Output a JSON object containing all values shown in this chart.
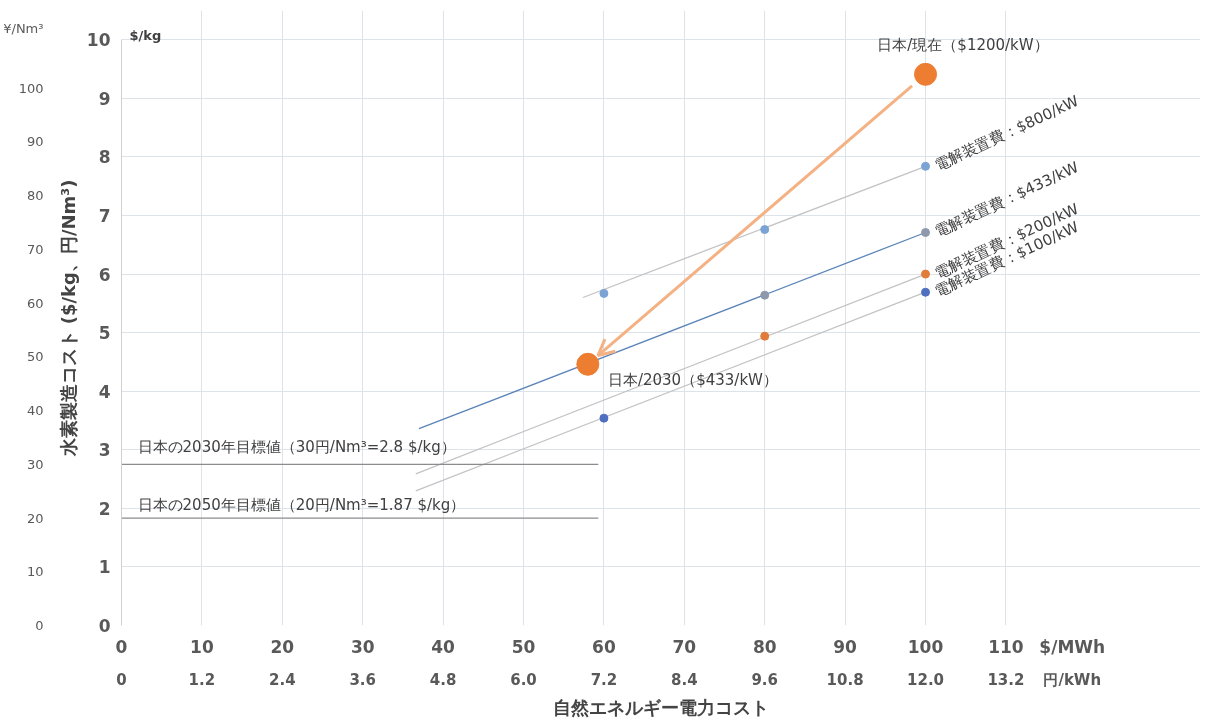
{
  "chart_data": {
    "type": "scatter",
    "xlabel": "自然エネルギー電力コスト",
    "ylabel": "水素製造コスト ($/kg、円/Nm³)",
    "xlim": [
      0,
      110
    ],
    "xticks": [
      0,
      10,
      20,
      30,
      40,
      50,
      60,
      70,
      80,
      90,
      100,
      110
    ],
    "ylim": [
      0,
      10
    ],
    "yticks": [
      0,
      1,
      2,
      3,
      4,
      5,
      6,
      7,
      8,
      9,
      10
    ],
    "x2lim": [
      0,
      13.2
    ],
    "x2ticks": [
      0,
      1.2,
      2.4,
      3.6,
      4.8,
      {
        "value": 6,
        "label": "6.0"
      },
      7.2,
      8.4,
      9.6,
      10.8,
      {
        "value": 12,
        "label": "12.0"
      },
      13.2
    ],
    "y2lim": [
      0,
      109
    ],
    "y2ticks": [
      0,
      10,
      20,
      30,
      40,
      50,
      60,
      70,
      80,
      90,
      100
    ],
    "grid": true,
    "series": [
      {
        "type": "line",
        "name": "電解装置費：$800/kW",
        "color": "#c3c3c3",
        "x": [
          57.4,
          100
        ],
        "values": [
          5.6,
          7.84
        ]
      },
      {
        "type": "line",
        "name": "電解装置費：$433/kW",
        "color": "#5b84b8",
        "x": [
          37,
          100
        ],
        "values": [
          3.36,
          6.71
        ]
      },
      {
        "type": "line",
        "name": "電解装置費：$200/kW",
        "color": "#c3c3c3",
        "x": [
          36.6,
          100
        ],
        "values": [
          2.59,
          6.0
        ]
      },
      {
        "type": "line",
        "name": "電解装置費：$100/kW",
        "color": "#c3c3c3",
        "x": [
          36.6,
          100
        ],
        "values": [
          2.3,
          5.69
        ]
      },
      {
        "type": "line",
        "color": "#8c8c8c",
        "axis": "y2",
        "x": [
          0,
          59.3
        ],
        "values": [
          30,
          30
        ]
      },
      {
        "type": "line",
        "color": "#8c8c8c",
        "axis": "y2",
        "x": [
          0,
          59.3
        ],
        "values": [
          20,
          20
        ]
      },
      {
        "color": "#7ba3d3",
        "x": [
          60,
          80,
          100
        ],
        "values": [
          5.67,
          6.76,
          7.84
        ]
      },
      {
        "color": "#8e9aab",
        "x": [
          80,
          100
        ],
        "values": [
          5.64,
          6.71
        ]
      },
      {
        "color": "#e07b39",
        "x": [
          80,
          100
        ],
        "values": [
          4.94,
          6.0
        ]
      },
      {
        "color": "#4f6fc0",
        "x": [
          60,
          100
        ],
        "values": [
          3.54,
          5.69
        ]
      },
      {
        "type": "bubble",
        "color": "#ed7d31",
        "x": [
          100,
          58
        ],
        "values": [
          9.41,
          4.46
        ],
        "sizes": [
          1,
          1
        ]
      }
    ],
    "annotations": [
      "日本/現在（$1200/kW）",
      "日本/2030（$433/kW）",
      "日本の2030年目標値（30円/Nm³=2.8 $/kg）",
      "日本の2050年目標値（20円/Nm³=1.87 $/kg）",
      "$/kg",
      "¥/Nm³",
      "$/MWh",
      "円/kWh"
    ]
  }
}
